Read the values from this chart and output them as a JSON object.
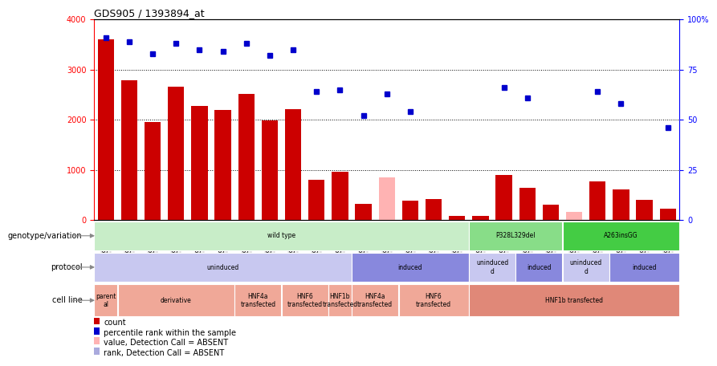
{
  "title": "GDS905 / 1393894_at",
  "samples": [
    "GSM27203",
    "GSM27204",
    "GSM27205",
    "GSM27206",
    "GSM27207",
    "GSM27150",
    "GSM27152",
    "GSM27156",
    "GSM27159",
    "GSM27063",
    "GSM27148",
    "GSM27151",
    "GSM27153",
    "GSM27157",
    "GSM27160",
    "GSM27147",
    "GSM27149",
    "GSM27161",
    "GSM27165",
    "GSM27163",
    "GSM27167",
    "GSM27169",
    "GSM27171",
    "GSM27170",
    "GSM27172"
  ],
  "counts": [
    3600,
    2780,
    1950,
    2660,
    2280,
    2200,
    2520,
    1980,
    2210,
    800,
    970,
    330,
    850,
    380,
    420,
    90,
    80,
    900,
    640,
    300,
    160,
    770,
    610,
    410,
    230
  ],
  "counts_absent": [
    false,
    false,
    false,
    false,
    false,
    false,
    false,
    false,
    false,
    false,
    false,
    false,
    true,
    false,
    false,
    false,
    false,
    false,
    false,
    false,
    true,
    false,
    false,
    false,
    false
  ],
  "ranks": [
    91,
    89,
    83,
    88,
    85,
    84,
    88,
    82,
    85,
    64,
    65,
    52,
    63,
    54,
    null,
    null,
    null,
    66,
    61,
    null,
    null,
    64,
    58,
    null,
    46
  ],
  "ranks_absent": [
    false,
    false,
    false,
    false,
    false,
    false,
    false,
    false,
    false,
    false,
    false,
    false,
    false,
    false,
    true,
    true,
    false,
    false,
    false,
    true,
    true,
    false,
    false,
    true,
    false
  ],
  "ylim_left": [
    0,
    4000
  ],
  "ylim_right": [
    0,
    100
  ],
  "yticks_left": [
    0,
    1000,
    2000,
    3000,
    4000
  ],
  "yticks_right": [
    0,
    25,
    50,
    75,
    100
  ],
  "bar_color": "#cc0000",
  "bar_absent_color": "#ffb3b3",
  "dot_color": "#0000cc",
  "dot_absent_color": "#aaaadd",
  "genotype_rows": [
    {
      "label": "wild type",
      "start": 0,
      "end": 16,
      "color": "#c8edc8"
    },
    {
      "label": "P328L329del",
      "start": 16,
      "end": 20,
      "color": "#88dd88"
    },
    {
      "label": "A263insGG",
      "start": 20,
      "end": 25,
      "color": "#44cc44"
    }
  ],
  "protocol_rows": [
    {
      "label": "uninduced",
      "start": 0,
      "end": 11,
      "color": "#c8c8f0"
    },
    {
      "label": "induced",
      "start": 11,
      "end": 16,
      "color": "#8888dd"
    },
    {
      "label": "uninduced\nd",
      "start": 16,
      "end": 18,
      "color": "#c8c8f0"
    },
    {
      "label": "induced",
      "start": 18,
      "end": 20,
      "color": "#8888dd"
    },
    {
      "label": "uninduced\nd",
      "start": 20,
      "end": 22,
      "color": "#c8c8f0"
    },
    {
      "label": "induced",
      "start": 22,
      "end": 25,
      "color": "#8888dd"
    }
  ],
  "cellline_rows": [
    {
      "label": "parent\nal",
      "start": 0,
      "end": 1,
      "color": "#f0a898"
    },
    {
      "label": "derivative",
      "start": 1,
      "end": 6,
      "color": "#f0a898"
    },
    {
      "label": "HNF4a\ntransfected",
      "start": 6,
      "end": 8,
      "color": "#f0a898"
    },
    {
      "label": "HNF6\ntransfected",
      "start": 8,
      "end": 10,
      "color": "#f0a898"
    },
    {
      "label": "HNF1b\ntransfected",
      "start": 10,
      "end": 11,
      "color": "#f0a898"
    },
    {
      "label": "HNF4a\ntransfected",
      "start": 11,
      "end": 13,
      "color": "#f0a898"
    },
    {
      "label": "HNF6\ntransfected",
      "start": 13,
      "end": 16,
      "color": "#f0a898"
    },
    {
      "label": "HNF1b transfected",
      "start": 16,
      "end": 25,
      "color": "#e08878"
    }
  ],
  "row_labels": [
    "genotype/variation",
    "protocol",
    "cell line"
  ],
  "legend_items": [
    {
      "label": "count",
      "color": "#cc0000"
    },
    {
      "label": "percentile rank within the sample",
      "color": "#0000cc"
    },
    {
      "label": "value, Detection Call = ABSENT",
      "color": "#ffb3b3"
    },
    {
      "label": "rank, Detection Call = ABSENT",
      "color": "#aaaadd"
    }
  ]
}
